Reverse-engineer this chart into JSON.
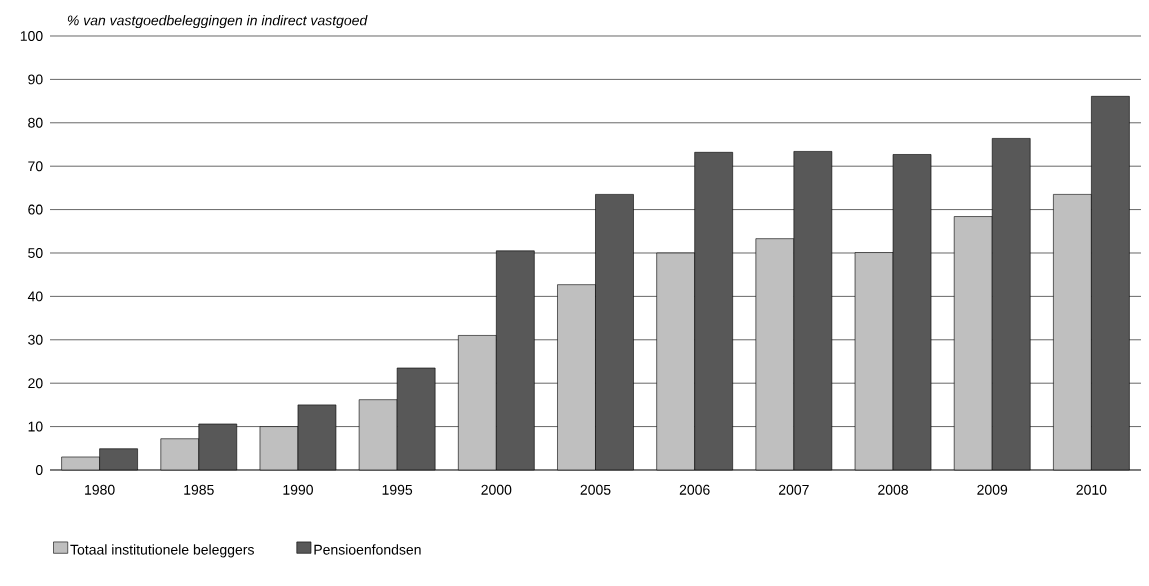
{
  "chart_data": {
    "type": "bar",
    "ylabel": "% van vastgoedbeleggingen in indirect vastgoed",
    "categories": [
      "1980",
      "1985",
      "1990",
      "1995",
      "2000",
      "2005",
      "2006",
      "2007",
      "2008",
      "2009",
      "2010"
    ],
    "series": [
      {
        "name": "Totaal institutionele beleggers",
        "color": "#bfbfbf",
        "values": [
          3.0,
          7.2,
          10,
          16.2,
          31,
          42.7,
          50,
          53.3,
          50.1,
          58.4,
          63.5
        ]
      },
      {
        "name": "Pensioenfondsen",
        "color": "#585858",
        "values": [
          4.9,
          10.6,
          15,
          23.5,
          50.5,
          63.5,
          73.2,
          73.4,
          72.7,
          76.4,
          86.1
        ]
      }
    ],
    "ylim": [
      0,
      100
    ],
    "yticks": [
      0,
      10,
      20,
      30,
      40,
      50,
      60,
      70,
      80,
      90,
      100
    ],
    "grid": "y",
    "legend": "bottom left"
  }
}
